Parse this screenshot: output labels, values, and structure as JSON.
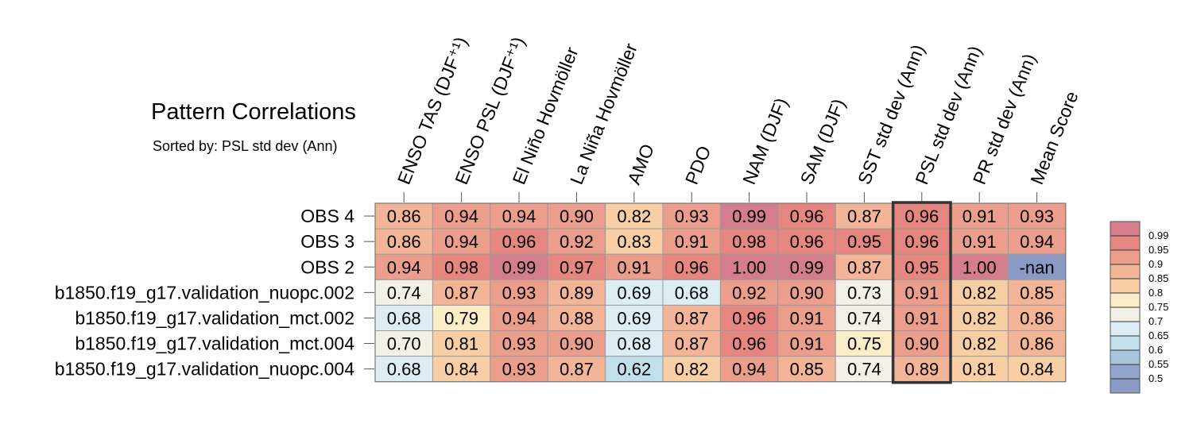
{
  "chart_data": {
    "type": "heatmap",
    "title": "Pattern Correlations",
    "subtitle": "Sorted by: PSL std dev (Ann)",
    "columns": [
      "ENSO TAS (DJF⁺¹)",
      "ENSO PSL (DJF⁺¹)",
      "El Niño Hovmöller",
      "La Niña Hovmöller",
      "AMO",
      "PDO",
      "NAM (DJF)",
      "SAM (DJF)",
      "SST std dev (Ann)",
      "PSL std dev (Ann)",
      "PR std dev (Ann)",
      "Mean Score"
    ],
    "rows": [
      "OBS 4",
      "OBS 3",
      "OBS 2",
      "b1850.f19_g17.validation_nuopc.002",
      "b1850.f19_g17.validation_mct.002",
      "b1850.f19_g17.validation_mct.004",
      "b1850.f19_g17.validation_nuopc.004"
    ],
    "values": [
      [
        "0.86",
        "0.94",
        "0.94",
        "0.90",
        "0.82",
        "0.93",
        "0.99",
        "0.96",
        "0.87",
        "0.96",
        "0.91",
        "0.93"
      ],
      [
        "0.86",
        "0.94",
        "0.96",
        "0.92",
        "0.83",
        "0.91",
        "0.98",
        "0.96",
        "0.95",
        "0.96",
        "0.91",
        "0.94"
      ],
      [
        "0.94",
        "0.98",
        "0.99",
        "0.97",
        "0.91",
        "0.96",
        "1.00",
        "0.99",
        "0.87",
        "0.95",
        "1.00",
        "-nan"
      ],
      [
        "0.74",
        "0.87",
        "0.93",
        "0.89",
        "0.69",
        "0.68",
        "0.92",
        "0.90",
        "0.73",
        "0.91",
        "0.82",
        "0.85"
      ],
      [
        "0.68",
        "0.79",
        "0.94",
        "0.88",
        "0.69",
        "0.87",
        "0.96",
        "0.91",
        "0.74",
        "0.91",
        "0.82",
        "0.86"
      ],
      [
        "0.70",
        "0.81",
        "0.93",
        "0.90",
        "0.68",
        "0.87",
        "0.96",
        "0.91",
        "0.75",
        "0.90",
        "0.82",
        "0.86"
      ],
      [
        "0.68",
        "0.84",
        "0.93",
        "0.87",
        "0.62",
        "0.82",
        "0.94",
        "0.85",
        "0.74",
        "0.89",
        "0.81",
        "0.84"
      ]
    ],
    "highlighted_column": "PSL std dev (Ann)",
    "colorbar": {
      "levels": [
        "0.99",
        "0.95",
        "0.9",
        "0.85",
        "0.8",
        "0.75",
        "0.7",
        "0.65",
        "0.6",
        "0.55",
        "0.5"
      ],
      "colors": [
        "#d47d8c",
        "#e58680",
        "#ec9e8c",
        "#f2b597",
        "#f8cfa5",
        "#faedc8",
        "#f2f1e5",
        "#dceef3",
        "#c1e0ec",
        "#a7c6dc",
        "#91a4cb",
        "#8a9ac4"
      ]
    },
    "nan_color": "#8a9ac4"
  }
}
